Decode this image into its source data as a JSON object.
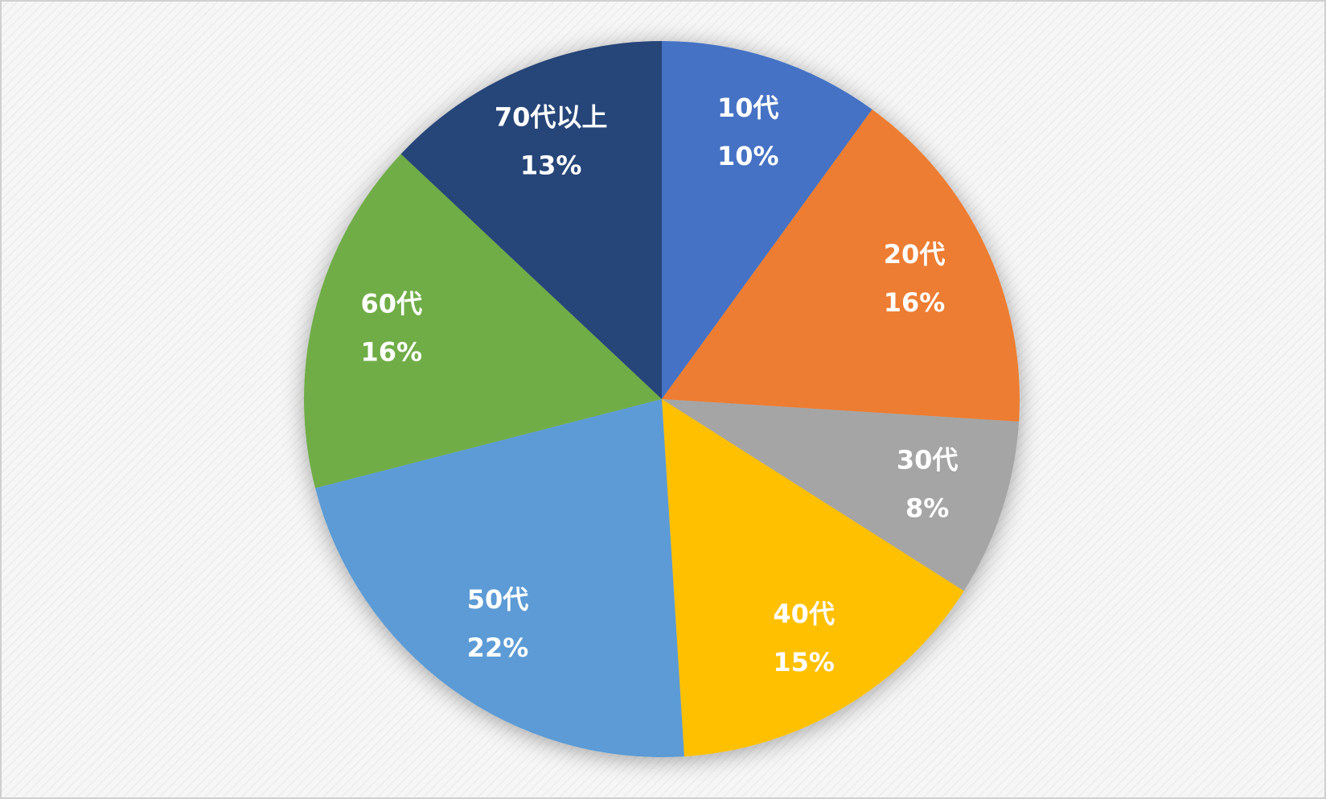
{
  "chart_data": {
    "type": "pie",
    "categories": [
      "10代",
      "20代",
      "30代",
      "40代",
      "50代",
      "60代",
      "70代以上"
    ],
    "values": [
      10,
      16,
      8,
      15,
      22,
      16,
      13
    ],
    "value_labels": [
      "10%",
      "16%",
      "8%",
      "15%",
      "22%",
      "16%",
      "13%"
    ],
    "colors": [
      "#4472c4",
      "#ed7d31",
      "#a5a5a5",
      "#ffc000",
      "#5b9bd5",
      "#70ad47",
      "#264478"
    ]
  }
}
